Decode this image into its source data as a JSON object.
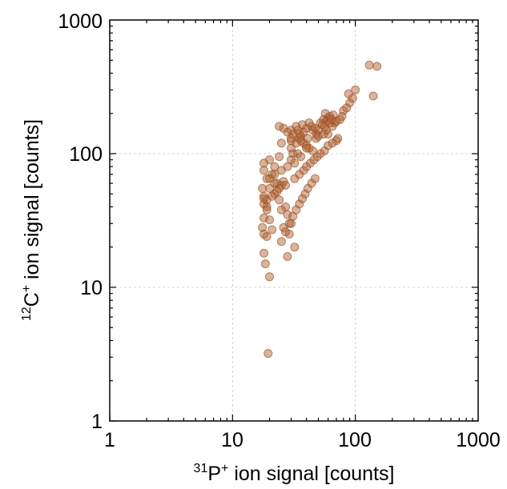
{
  "chart_data": {
    "type": "scatter",
    "xscale": "log",
    "yscale": "log",
    "xlim": [
      1,
      1000
    ],
    "ylim": [
      1,
      1000
    ],
    "grid": true,
    "xticks": [
      "1",
      "10",
      "100",
      "1000"
    ],
    "yticks": [
      "1",
      "10",
      "100",
      "1000"
    ],
    "xlabel": {
      "sup": "31",
      "base": "P",
      "sup2": "+",
      "text": " ion signal [counts]"
    },
    "ylabel": {
      "sup": "12",
      "base": "C",
      "sup2": "+",
      "text": " ion signal [counts]"
    },
    "point_color": "#b06030",
    "x": [
      18,
      20,
      18,
      19,
      17.5,
      18,
      19,
      18,
      17.5,
      18,
      19,
      18,
      18.5,
      20,
      22,
      24,
      21,
      23,
      25,
      22,
      24,
      27,
      25,
      28,
      30,
      26,
      29,
      32,
      28,
      31,
      30,
      33,
      35,
      31,
      34,
      30,
      36,
      38,
      33,
      40,
      42,
      37,
      45,
      48,
      41,
      50,
      44,
      52,
      55,
      47,
      58,
      60,
      54,
      62,
      57,
      65,
      68,
      70,
      75,
      66,
      80,
      85,
      78,
      90,
      95,
      88,
      100,
      130,
      150,
      140,
      34,
      36,
      30,
      32,
      28,
      25,
      22,
      20,
      26,
      27,
      24,
      23,
      21,
      19,
      18,
      45,
      42,
      40,
      38,
      36,
      48,
      50,
      55,
      28,
      30,
      26,
      24,
      22,
      20,
      32,
      35,
      38,
      40,
      43,
      46,
      49,
      52,
      56,
      60,
      65,
      70,
      72,
      60,
      58,
      56,
      62,
      64,
      18,
      19,
      20,
      21,
      25,
      27,
      29,
      31,
      33,
      35,
      37,
      39,
      41,
      44,
      47,
      25,
      30,
      35,
      40,
      19.5
    ],
    "y": [
      85,
      90,
      75,
      65,
      55,
      48,
      40,
      33,
      28,
      25,
      24,
      18,
      15,
      12,
      80,
      95,
      70,
      60,
      58,
      50,
      45,
      40,
      38,
      35,
      30,
      28,
      25,
      20,
      17,
      100,
      110,
      120,
      130,
      140,
      150,
      125,
      135,
      145,
      160,
      155,
      170,
      165,
      150,
      140,
      130,
      150,
      160,
      170,
      180,
      155,
      175,
      185,
      165,
      190,
      200,
      160,
      170,
      175,
      180,
      195,
      210,
      220,
      190,
      240,
      260,
      280,
      300,
      460,
      450,
      270,
      100,
      95,
      90,
      85,
      80,
      75,
      70,
      65,
      62,
      58,
      55,
      52,
      48,
      45,
      42,
      105,
      110,
      115,
      120,
      125,
      130,
      135,
      140,
      145,
      150,
      155,
      160,
      60,
      55,
      65,
      70,
      75,
      80,
      85,
      90,
      95,
      100,
      105,
      115,
      120,
      125,
      130,
      140,
      150,
      160,
      170,
      180,
      46,
      38,
      32,
      27,
      22,
      26,
      30,
      34,
      38,
      42,
      46,
      50,
      55,
      60,
      65,
      120,
      130,
      140,
      110,
      3.2
    ]
  }
}
